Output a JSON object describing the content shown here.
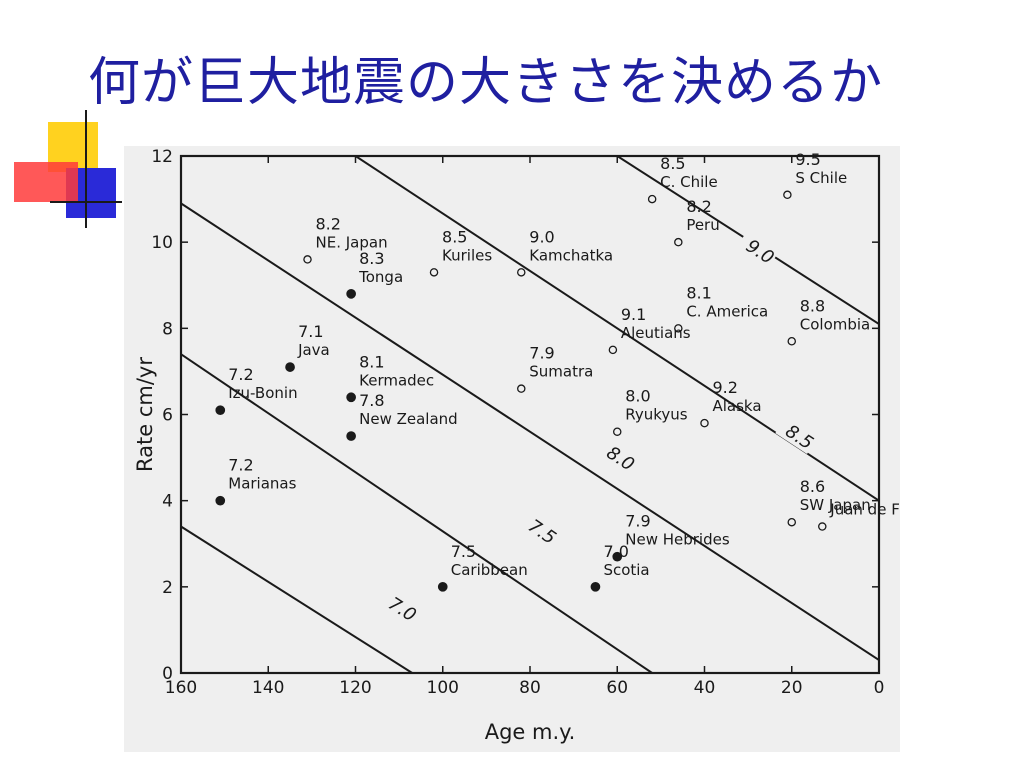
{
  "slide": {
    "title": "何が巨大地震の大きさを決めるか"
  },
  "colors": {
    "title": "#1f1fa0",
    "figure_background": "#efefef",
    "ink": "#1a1a1a",
    "deco_yellow": "#ffd21f",
    "deco_red": "#ff3b3b",
    "deco_blue": "#2a2ad8"
  },
  "chart_data": {
    "type": "scatter",
    "xlabel": "Age m.y.",
    "ylabel": "Rate cm/yr",
    "xlim": [
      160,
      0
    ],
    "ylim": [
      0,
      12
    ],
    "x_ticks": [
      160,
      140,
      120,
      100,
      80,
      60,
      40,
      20,
      0
    ],
    "y_ticks": [
      0,
      2,
      4,
      6,
      8,
      10,
      12
    ],
    "grid": false,
    "contours": [
      {
        "label": "7.0",
        "from": [
          160,
          3.4
        ],
        "to": [
          107,
          0
        ],
        "label_at": [
          110,
          1.5
        ]
      },
      {
        "label": "7.5",
        "from": [
          160,
          7.4
        ],
        "to": [
          52,
          0
        ],
        "label_at": [
          78,
          3.3
        ]
      },
      {
        "label": "8.0",
        "from": [
          160,
          10.9
        ],
        "to": [
          0,
          0.3
        ],
        "label_at": [
          60,
          5.0
        ]
      },
      {
        "label": "8.5",
        "from": [
          120,
          12
        ],
        "to": [
          0,
          4.0
        ],
        "label_at": [
          19,
          5.5
        ]
      },
      {
        "label": "9.0",
        "from": [
          60,
          12
        ],
        "to": [
          0,
          8.1
        ],
        "label_at": [
          28,
          9.8
        ]
      }
    ],
    "points": [
      {
        "x": 151,
        "y": 4.0,
        "mag": "7.2",
        "name": "Marianas",
        "filled": true
      },
      {
        "x": 151,
        "y": 6.1,
        "mag": "7.2",
        "name": "Izu-Bonin",
        "filled": true
      },
      {
        "x": 135,
        "y": 7.1,
        "mag": "7.1",
        "name": "Java",
        "filled": true
      },
      {
        "x": 121,
        "y": 6.4,
        "mag": "8.1",
        "name": "Kermadec",
        "filled": true
      },
      {
        "x": 121,
        "y": 8.8,
        "mag": "8.3",
        "name": "Tonga",
        "filled": true
      },
      {
        "x": 121,
        "y": 5.5,
        "mag": "7.8",
        "name": "New Zealand",
        "filled": true
      },
      {
        "x": 100,
        "y": 2.0,
        "mag": "7.5",
        "name": "Caribbean",
        "filled": true
      },
      {
        "x": 60,
        "y": 2.7,
        "mag": "7.9",
        "name": "New Hebrides",
        "filled": true
      },
      {
        "x": 65,
        "y": 2.0,
        "mag": "7.0",
        "name": "Scotia",
        "filled": true
      },
      {
        "x": 131,
        "y": 9.6,
        "mag": "8.2",
        "name": "NE. Japan",
        "filled": false
      },
      {
        "x": 102,
        "y": 9.3,
        "mag": "8.5",
        "name": "Kuriles",
        "filled": false
      },
      {
        "x": 82,
        "y": 9.3,
        "mag": "9.0",
        "name": "Kamchatka",
        "filled": false
      },
      {
        "x": 82,
        "y": 6.6,
        "mag": "7.9",
        "name": "Sumatra",
        "filled": false
      },
      {
        "x": 61,
        "y": 7.5,
        "mag": "9.1",
        "name": "Aleutians",
        "filled": false
      },
      {
        "x": 60,
        "y": 5.6,
        "mag": "8.0",
        "name": "Ryukyus",
        "filled": false
      },
      {
        "x": 52,
        "y": 11.0,
        "mag": "8.5",
        "name": "C. Chile",
        "filled": false
      },
      {
        "x": 46,
        "y": 10.0,
        "mag": "8.2",
        "name": "Peru",
        "filled": false
      },
      {
        "x": 46,
        "y": 8.0,
        "mag": "8.1",
        "name": "C. America",
        "filled": false
      },
      {
        "x": 40,
        "y": 5.8,
        "mag": "9.2",
        "name": "Alaska",
        "filled": false
      },
      {
        "x": 21,
        "y": 11.1,
        "mag": "9.5",
        "name": "S Chile",
        "filled": false
      },
      {
        "x": 20,
        "y": 7.7,
        "mag": "8.8",
        "name": "Colombia",
        "filled": false
      },
      {
        "x": 20,
        "y": 3.5,
        "mag": "8.6",
        "name": "SW Japan",
        "filled": false
      },
      {
        "x": 13,
        "y": 3.4,
        "mag": "",
        "name": "Juan de Fuca",
        "filled": false
      }
    ]
  }
}
